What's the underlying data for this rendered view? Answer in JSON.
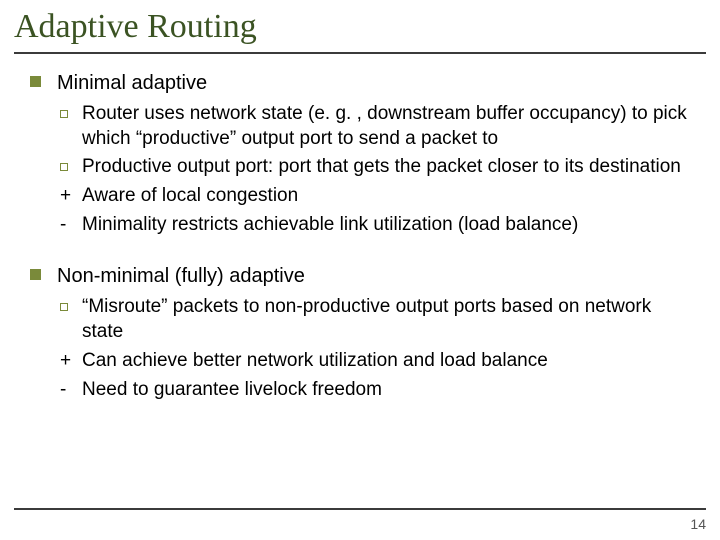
{
  "title": "Adaptive Routing",
  "title_fontsize": 34,
  "title_color": "#3b5323",
  "rule_color": "#3b3b3b",
  "bullet_color": "#7a8a3a",
  "body_fontsize_l1": 20,
  "body_fontsize_l2": 19,
  "page_number": "14",
  "page_number_fontsize": 14,
  "section1": {
    "heading": "Minimal adaptive",
    "items": [
      {
        "marker": "box",
        "text": "Router uses network state (e. g. , downstream buffer occupancy) to pick which “productive” output port to send a packet to"
      },
      {
        "marker": "box",
        "text": "Productive output port: port that gets the packet closer to its destination"
      },
      {
        "marker": "plus",
        "text": "Aware of local congestion"
      },
      {
        "marker": "minus",
        "text": "Minimality restricts achievable link utilization (load balance)"
      }
    ]
  },
  "section2": {
    "heading": "Non-minimal (fully) adaptive",
    "items": [
      {
        "marker": "box",
        "text": "“Misroute” packets to non-productive output ports based on network state"
      },
      {
        "marker": "plus",
        "text": "Can achieve better network utilization and load balance"
      },
      {
        "marker": "minus",
        "text": "Need to guarantee livelock freedom"
      }
    ]
  }
}
